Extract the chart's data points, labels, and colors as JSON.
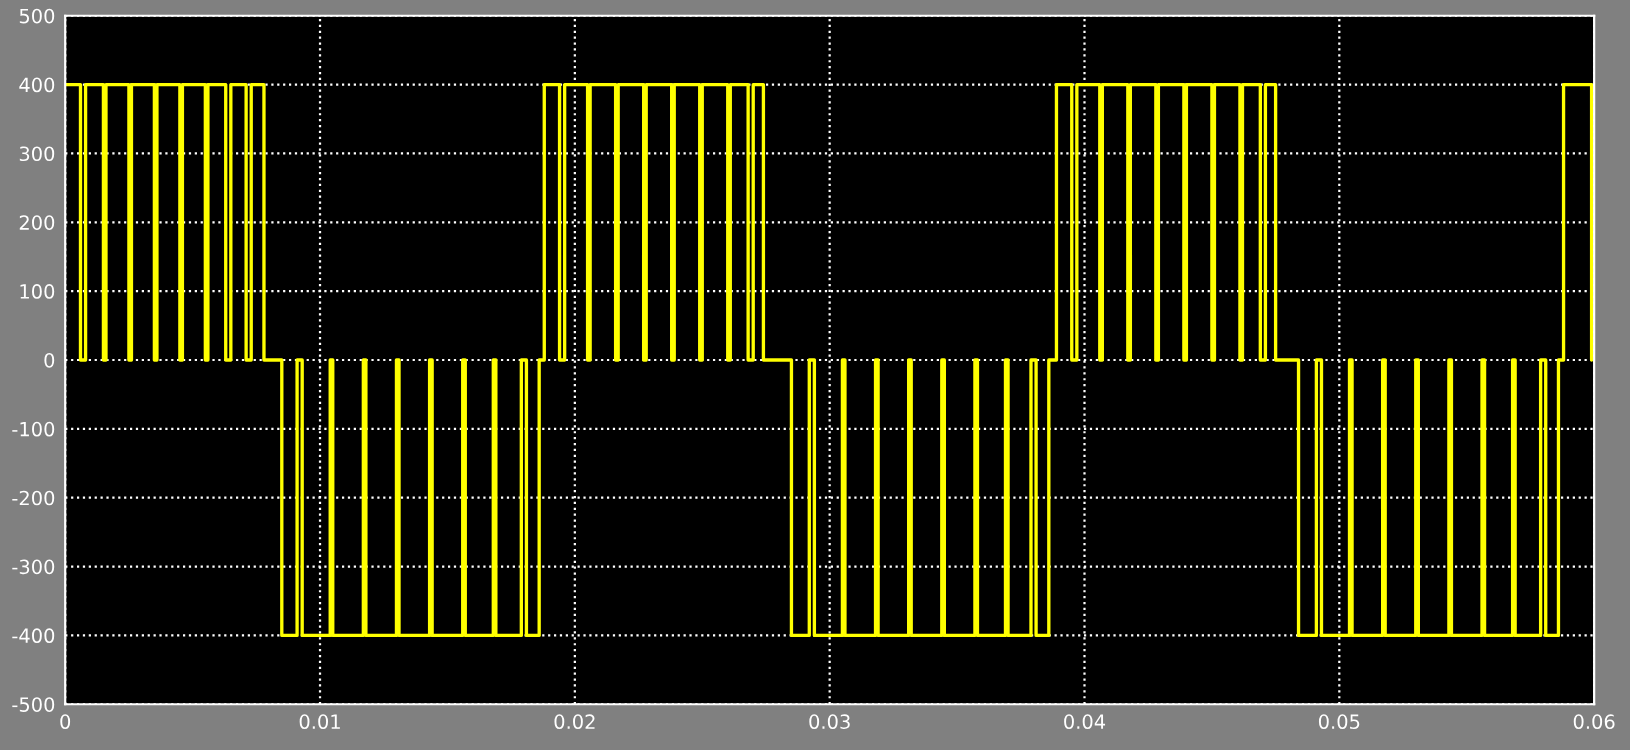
{
  "chart_data": {
    "type": "step",
    "xlim": [
      0,
      0.06
    ],
    "ylim": [
      -500,
      500
    ],
    "xticks": [
      0,
      0.01,
      0.02,
      0.03,
      0.04,
      0.05,
      0.06
    ],
    "yticks": [
      -500,
      -400,
      -300,
      -200,
      -100,
      0,
      100,
      200,
      300,
      400,
      500
    ],
    "grid": true,
    "line_style": "solid",
    "marker": "none",
    "series": [
      {
        "color": "#ffff00",
        "x": [
          0,
          0.0006,
          0.0008,
          0.0015,
          0.0016,
          0.0025,
          0.0026,
          0.0035,
          0.0036,
          0.0045,
          0.0046,
          0.0055,
          0.0056,
          0.0063,
          0.0065,
          0.0071,
          0.0073,
          0.0078,
          0.0085,
          0.0091,
          0.0093,
          0.0104,
          0.0105,
          0.0117,
          0.0118,
          0.013,
          0.0131,
          0.0143,
          0.0144,
          0.0156,
          0.0157,
          0.0168,
          0.0169,
          0.0179,
          0.0181,
          0.0186,
          0.0188,
          0.0194,
          0.0196,
          0.0205,
          0.0206,
          0.0216,
          0.0217,
          0.0227,
          0.0228,
          0.0238,
          0.0239,
          0.0249,
          0.025,
          0.026,
          0.0261,
          0.0268,
          0.027,
          0.0274,
          0.0285,
          0.0292,
          0.0294,
          0.0305,
          0.0306,
          0.0318,
          0.0319,
          0.0331,
          0.0332,
          0.0344,
          0.0345,
          0.0357,
          0.0358,
          0.0369,
          0.037,
          0.0379,
          0.0381,
          0.0386,
          0.0389,
          0.0395,
          0.0397,
          0.0406,
          0.0407,
          0.0417,
          0.0418,
          0.0428,
          0.0429,
          0.0439,
          0.044,
          0.045,
          0.0451,
          0.0461,
          0.0462,
          0.0469,
          0.0471,
          0.0475,
          0.0484,
          0.0491,
          0.0493,
          0.0504,
          0.0505,
          0.0517,
          0.0518,
          0.053,
          0.0531,
          0.0543,
          0.0544,
          0.0556,
          0.0557,
          0.0568,
          0.0569,
          0.0579,
          0.0581,
          0.0586,
          0.0588,
          0.0599
        ],
        "values": [
          400,
          0,
          400,
          0,
          400,
          0,
          400,
          0,
          400,
          0,
          400,
          0,
          400,
          0,
          400,
          0,
          400,
          0,
          -400,
          0,
          -400,
          0,
          -400,
          0,
          -400,
          0,
          -400,
          0,
          -400,
          0,
          -400,
          0,
          -400,
          0,
          -400,
          0,
          400,
          0,
          400,
          0,
          400,
          0,
          400,
          0,
          400,
          0,
          400,
          0,
          400,
          0,
          400,
          0,
          400,
          0,
          -400,
          0,
          -400,
          0,
          -400,
          0,
          -400,
          0,
          -400,
          0,
          -400,
          0,
          -400,
          0,
          -400,
          0,
          -400,
          0,
          400,
          0,
          400,
          0,
          400,
          0,
          400,
          0,
          400,
          0,
          400,
          0,
          400,
          0,
          400,
          0,
          400,
          0,
          -400,
          0,
          -400,
          0,
          -400,
          0,
          -400,
          0,
          -400,
          0,
          -400,
          0,
          -400,
          0,
          -400,
          0,
          -400,
          0,
          400,
          0
        ]
      }
    ]
  }
}
